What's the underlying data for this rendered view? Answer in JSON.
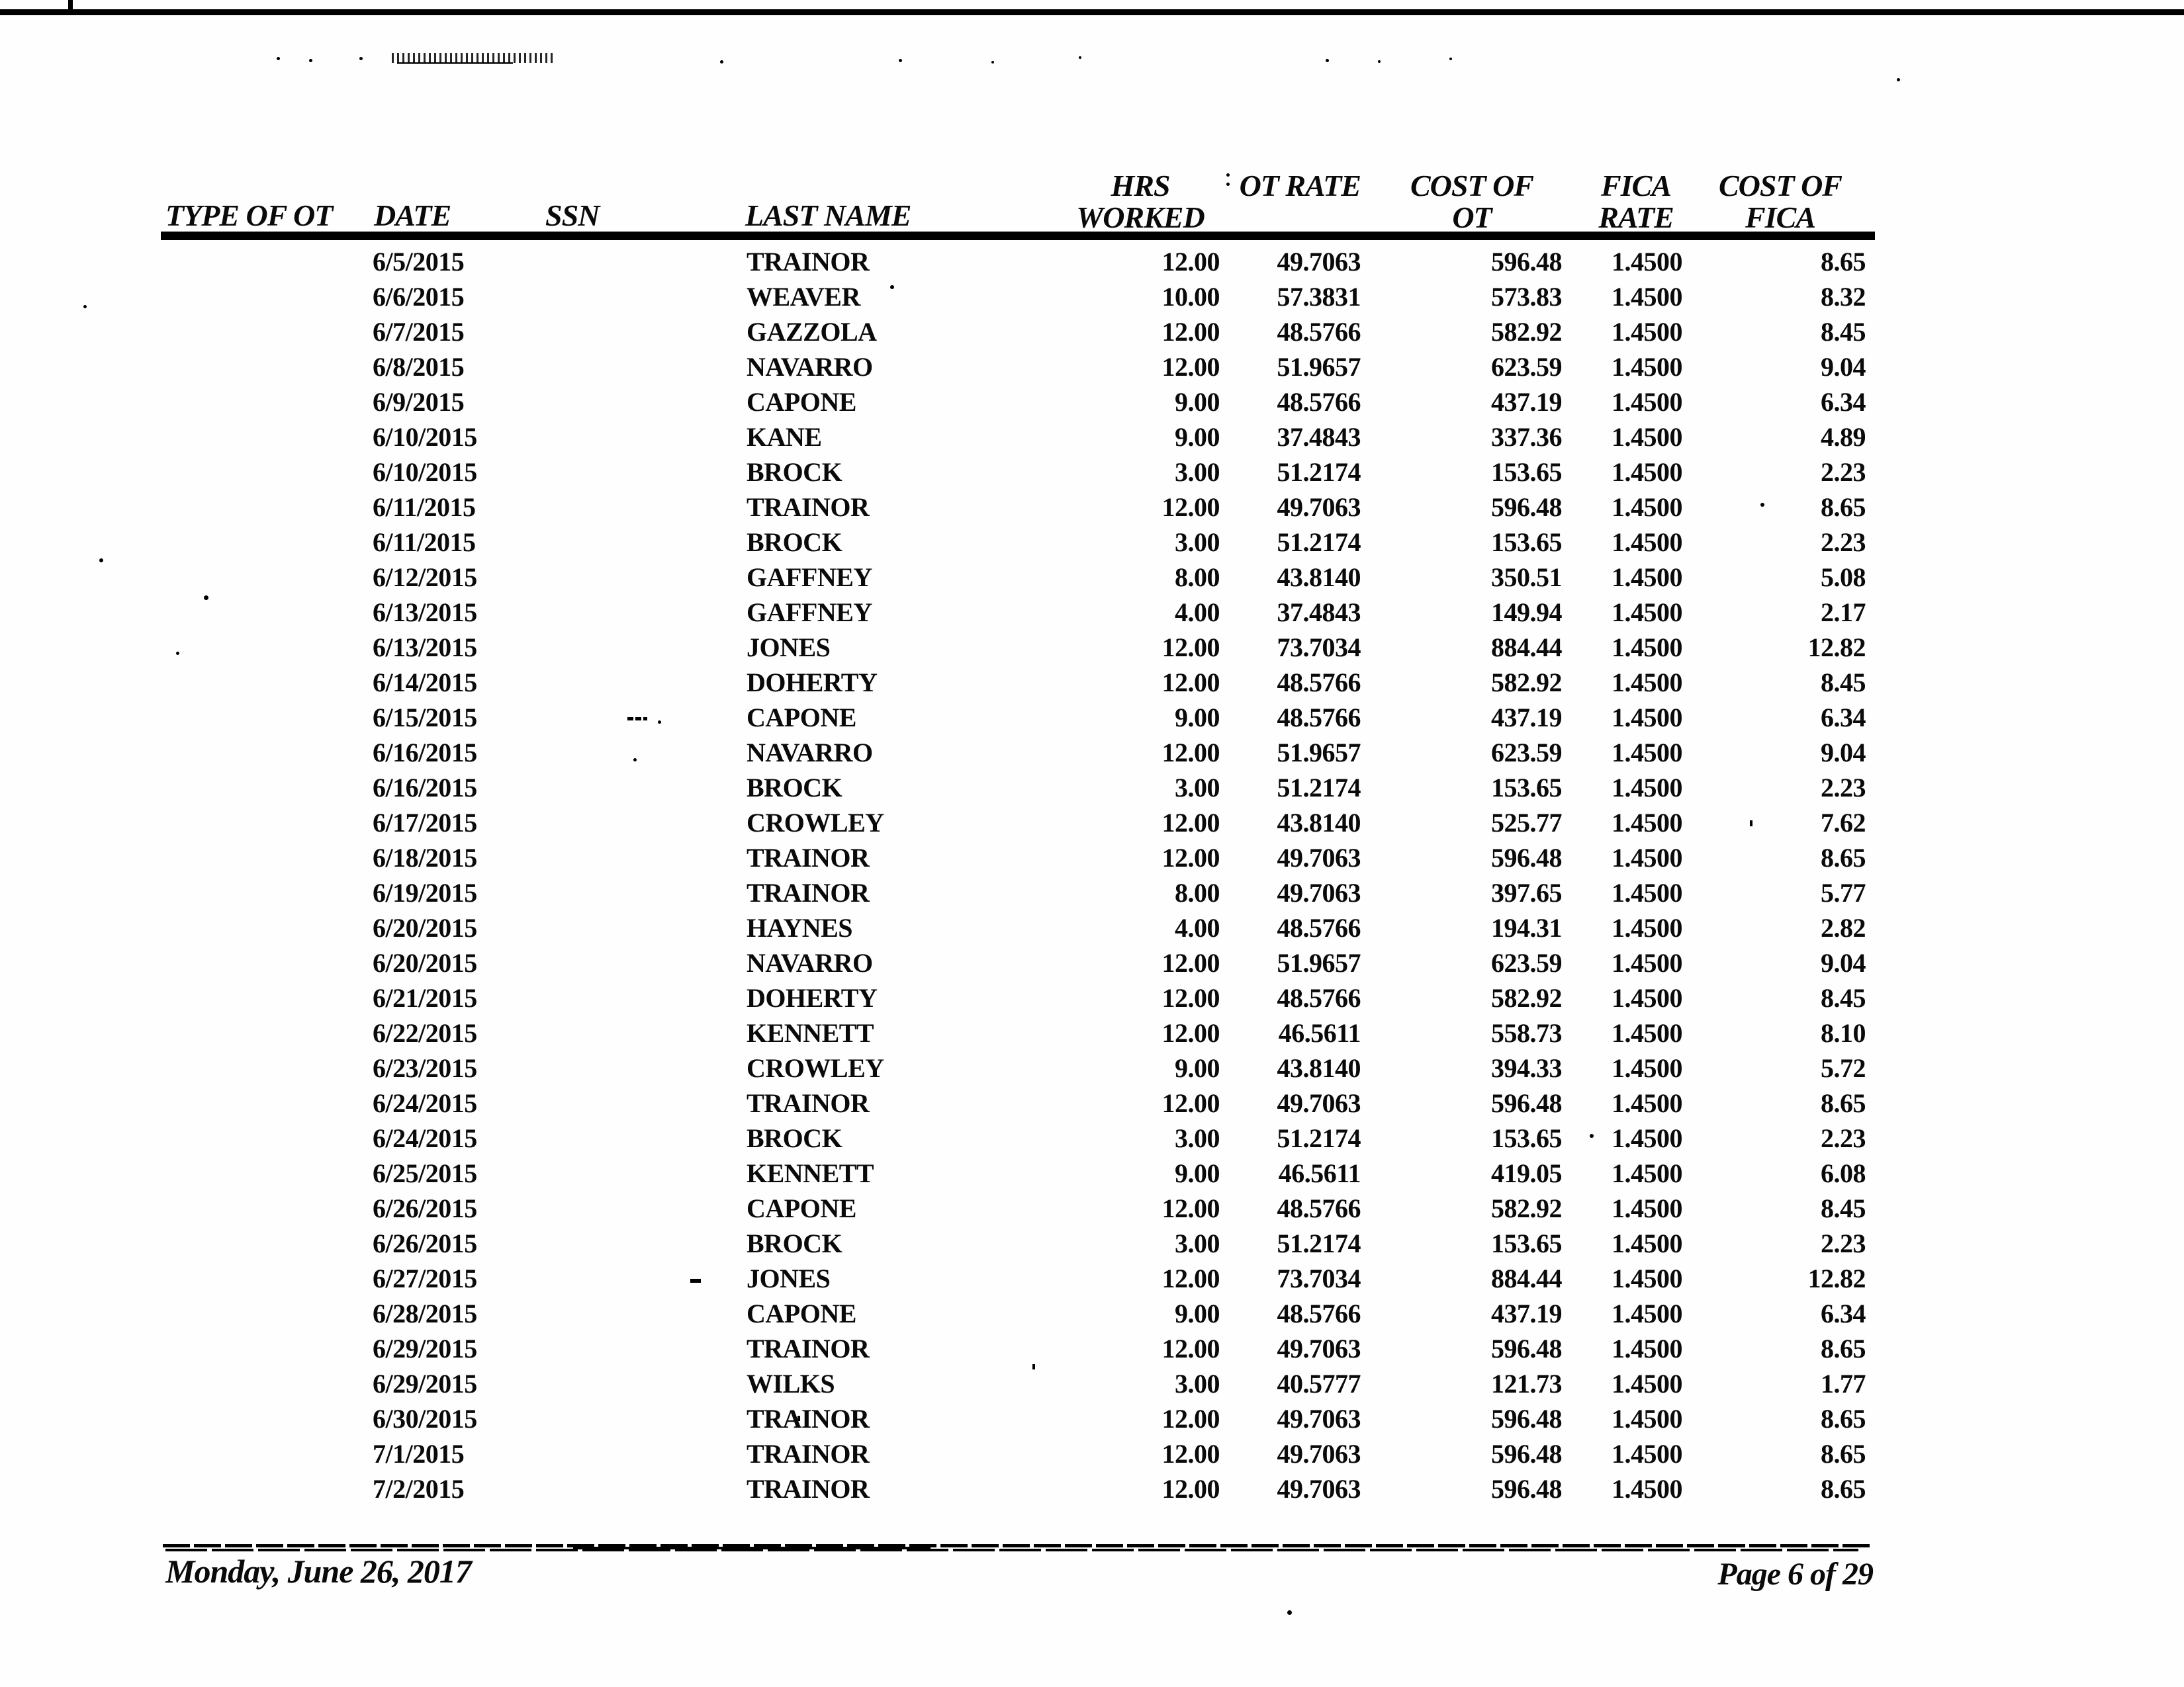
{
  "table": {
    "headers": {
      "type_of_ot": "TYPE OF OT",
      "date": "DATE",
      "ssn": "SSN",
      "last_name": "LAST NAME",
      "hrs_line1": "HRS",
      "hrs_line2": "WORKED",
      "ot_rate": "OT RATE",
      "cost_of_ot_line1": "COST OF",
      "cost_of_ot_line2": "OT",
      "fica_rate_line1": "FICA",
      "fica_rate_line2": "RATE",
      "cost_of_fica_line1": "COST OF",
      "cost_of_fica_line2": "FICA"
    },
    "rows": [
      {
        "date": "6/5/2015",
        "last_name": "TRAINOR",
        "hrs_worked": "12.00",
        "ot_rate": "49.7063",
        "cost_of_ot": "596.48",
        "fica_rate": "1.4500",
        "cost_of_fica": "8.65"
      },
      {
        "date": "6/6/2015",
        "last_name": "WEAVER",
        "hrs_worked": "10.00",
        "ot_rate": "57.3831",
        "cost_of_ot": "573.83",
        "fica_rate": "1.4500",
        "cost_of_fica": "8.32"
      },
      {
        "date": "6/7/2015",
        "last_name": "GAZZOLA",
        "hrs_worked": "12.00",
        "ot_rate": "48.5766",
        "cost_of_ot": "582.92",
        "fica_rate": "1.4500",
        "cost_of_fica": "8.45"
      },
      {
        "date": "6/8/2015",
        "last_name": "NAVARRO",
        "hrs_worked": "12.00",
        "ot_rate": "51.9657",
        "cost_of_ot": "623.59",
        "fica_rate": "1.4500",
        "cost_of_fica": "9.04"
      },
      {
        "date": "6/9/2015",
        "last_name": "CAPONE",
        "hrs_worked": "9.00",
        "ot_rate": "48.5766",
        "cost_of_ot": "437.19",
        "fica_rate": "1.4500",
        "cost_of_fica": "6.34"
      },
      {
        "date": "6/10/2015",
        "last_name": "KANE",
        "hrs_worked": "9.00",
        "ot_rate": "37.4843",
        "cost_of_ot": "337.36",
        "fica_rate": "1.4500",
        "cost_of_fica": "4.89"
      },
      {
        "date": "6/10/2015",
        "last_name": "BROCK",
        "hrs_worked": "3.00",
        "ot_rate": "51.2174",
        "cost_of_ot": "153.65",
        "fica_rate": "1.4500",
        "cost_of_fica": "2.23"
      },
      {
        "date": "6/11/2015",
        "last_name": "TRAINOR",
        "hrs_worked": "12.00",
        "ot_rate": "49.7063",
        "cost_of_ot": "596.48",
        "fica_rate": "1.4500",
        "cost_of_fica": "8.65"
      },
      {
        "date": "6/11/2015",
        "last_name": "BROCK",
        "hrs_worked": "3.00",
        "ot_rate": "51.2174",
        "cost_of_ot": "153.65",
        "fica_rate": "1.4500",
        "cost_of_fica": "2.23"
      },
      {
        "date": "6/12/2015",
        "last_name": "GAFFNEY",
        "hrs_worked": "8.00",
        "ot_rate": "43.8140",
        "cost_of_ot": "350.51",
        "fica_rate": "1.4500",
        "cost_of_fica": "5.08"
      },
      {
        "date": "6/13/2015",
        "last_name": "GAFFNEY",
        "hrs_worked": "4.00",
        "ot_rate": "37.4843",
        "cost_of_ot": "149.94",
        "fica_rate": "1.4500",
        "cost_of_fica": "2.17"
      },
      {
        "date": "6/13/2015",
        "last_name": "JONES",
        "hrs_worked": "12.00",
        "ot_rate": "73.7034",
        "cost_of_ot": "884.44",
        "fica_rate": "1.4500",
        "cost_of_fica": "12.82"
      },
      {
        "date": "6/14/2015",
        "last_name": "DOHERTY",
        "hrs_worked": "12.00",
        "ot_rate": "48.5766",
        "cost_of_ot": "582.92",
        "fica_rate": "1.4500",
        "cost_of_fica": "8.45"
      },
      {
        "date": "6/15/2015",
        "last_name": "CAPONE",
        "hrs_worked": "9.00",
        "ot_rate": "48.5766",
        "cost_of_ot": "437.19",
        "fica_rate": "1.4500",
        "cost_of_fica": "6.34"
      },
      {
        "date": "6/16/2015",
        "last_name": "NAVARRO",
        "hrs_worked": "12.00",
        "ot_rate": "51.9657",
        "cost_of_ot": "623.59",
        "fica_rate": "1.4500",
        "cost_of_fica": "9.04"
      },
      {
        "date": "6/16/2015",
        "last_name": "BROCK",
        "hrs_worked": "3.00",
        "ot_rate": "51.2174",
        "cost_of_ot": "153.65",
        "fica_rate": "1.4500",
        "cost_of_fica": "2.23"
      },
      {
        "date": "6/17/2015",
        "last_name": "CROWLEY",
        "hrs_worked": "12.00",
        "ot_rate": "43.8140",
        "cost_of_ot": "525.77",
        "fica_rate": "1.4500",
        "cost_of_fica": "7.62"
      },
      {
        "date": "6/18/2015",
        "last_name": "TRAINOR",
        "hrs_worked": "12.00",
        "ot_rate": "49.7063",
        "cost_of_ot": "596.48",
        "fica_rate": "1.4500",
        "cost_of_fica": "8.65"
      },
      {
        "date": "6/19/2015",
        "last_name": "TRAINOR",
        "hrs_worked": "8.00",
        "ot_rate": "49.7063",
        "cost_of_ot": "397.65",
        "fica_rate": "1.4500",
        "cost_of_fica": "5.77"
      },
      {
        "date": "6/20/2015",
        "last_name": "HAYNES",
        "hrs_worked": "4.00",
        "ot_rate": "48.5766",
        "cost_of_ot": "194.31",
        "fica_rate": "1.4500",
        "cost_of_fica": "2.82"
      },
      {
        "date": "6/20/2015",
        "last_name": "NAVARRO",
        "hrs_worked": "12.00",
        "ot_rate": "51.9657",
        "cost_of_ot": "623.59",
        "fica_rate": "1.4500",
        "cost_of_fica": "9.04"
      },
      {
        "date": "6/21/2015",
        "last_name": "DOHERTY",
        "hrs_worked": "12.00",
        "ot_rate": "48.5766",
        "cost_of_ot": "582.92",
        "fica_rate": "1.4500",
        "cost_of_fica": "8.45"
      },
      {
        "date": "6/22/2015",
        "last_name": "KENNETT",
        "hrs_worked": "12.00",
        "ot_rate": "46.5611",
        "cost_of_ot": "558.73",
        "fica_rate": "1.4500",
        "cost_of_fica": "8.10"
      },
      {
        "date": "6/23/2015",
        "last_name": "CROWLEY",
        "hrs_worked": "9.00",
        "ot_rate": "43.8140",
        "cost_of_ot": "394.33",
        "fica_rate": "1.4500",
        "cost_of_fica": "5.72"
      },
      {
        "date": "6/24/2015",
        "last_name": "TRAINOR",
        "hrs_worked": "12.00",
        "ot_rate": "49.7063",
        "cost_of_ot": "596.48",
        "fica_rate": "1.4500",
        "cost_of_fica": "8.65"
      },
      {
        "date": "6/24/2015",
        "last_name": "BROCK",
        "hrs_worked": "3.00",
        "ot_rate": "51.2174",
        "cost_of_ot": "153.65",
        "fica_rate": "1.4500",
        "cost_of_fica": "2.23"
      },
      {
        "date": "6/25/2015",
        "last_name": "KENNETT",
        "hrs_worked": "9.00",
        "ot_rate": "46.5611",
        "cost_of_ot": "419.05",
        "fica_rate": "1.4500",
        "cost_of_fica": "6.08"
      },
      {
        "date": "6/26/2015",
        "last_name": "CAPONE",
        "hrs_worked": "12.00",
        "ot_rate": "48.5766",
        "cost_of_ot": "582.92",
        "fica_rate": "1.4500",
        "cost_of_fica": "8.45"
      },
      {
        "date": "6/26/2015",
        "last_name": "BROCK",
        "hrs_worked": "3.00",
        "ot_rate": "51.2174",
        "cost_of_ot": "153.65",
        "fica_rate": "1.4500",
        "cost_of_fica": "2.23"
      },
      {
        "date": "6/27/2015",
        "last_name": "JONES",
        "hrs_worked": "12.00",
        "ot_rate": "73.7034",
        "cost_of_ot": "884.44",
        "fica_rate": "1.4500",
        "cost_of_fica": "12.82"
      },
      {
        "date": "6/28/2015",
        "last_name": "CAPONE",
        "hrs_worked": "9.00",
        "ot_rate": "48.5766",
        "cost_of_ot": "437.19",
        "fica_rate": "1.4500",
        "cost_of_fica": "6.34"
      },
      {
        "date": "6/29/2015",
        "last_name": "TRAINOR",
        "hrs_worked": "12.00",
        "ot_rate": "49.7063",
        "cost_of_ot": "596.48",
        "fica_rate": "1.4500",
        "cost_of_fica": "8.65"
      },
      {
        "date": "6/29/2015",
        "last_name": "WILKS",
        "hrs_worked": "3.00",
        "ot_rate": "40.5777",
        "cost_of_ot": "121.73",
        "fica_rate": "1.4500",
        "cost_of_fica": "1.77"
      },
      {
        "date": "6/30/2015",
        "last_name": "TRAINOR",
        "hrs_worked": "12.00",
        "ot_rate": "49.7063",
        "cost_of_ot": "596.48",
        "fica_rate": "1.4500",
        "cost_of_fica": "8.65"
      },
      {
        "date": "7/1/2015",
        "last_name": "TRAINOR",
        "hrs_worked": "12.00",
        "ot_rate": "49.7063",
        "cost_of_ot": "596.48",
        "fica_rate": "1.4500",
        "cost_of_fica": "8.65"
      },
      {
        "date": "7/2/2015",
        "last_name": "TRAINOR",
        "hrs_worked": "12.00",
        "ot_rate": "49.7063",
        "cost_of_ot": "596.48",
        "fica_rate": "1.4500",
        "cost_of_fica": "8.65"
      }
    ]
  },
  "footer": {
    "date": "Monday, June 26, 2017",
    "page": "Page 6 of 29"
  }
}
